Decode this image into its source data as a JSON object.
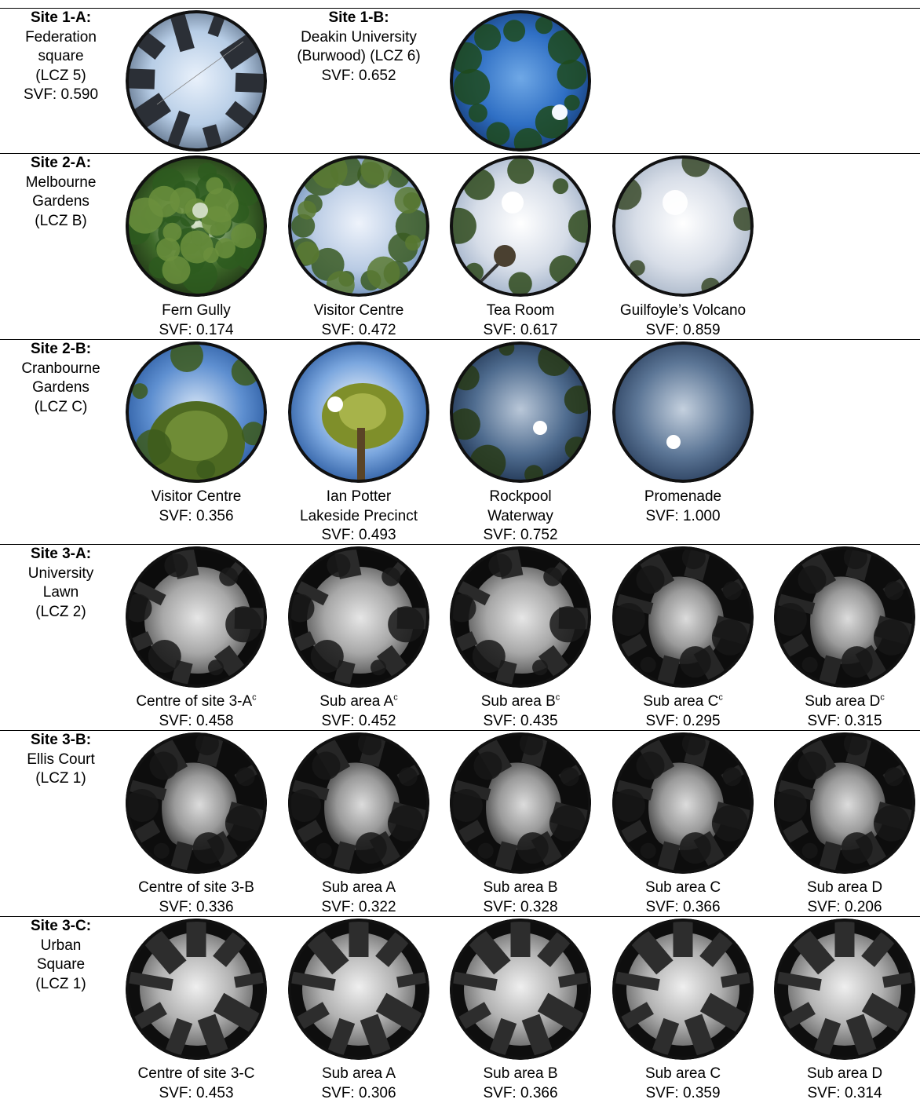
{
  "rows": [
    {
      "site": [
        "Site 1-A:",
        "Federation",
        "square",
        "(LCZ 5)",
        "SVF: 0.590"
      ],
      "inline": [
        "Site 1-B:",
        "Deakin University",
        "(Burwood) (LCZ 6)",
        "SVF: 0.652"
      ],
      "photos": [
        {
          "style": "dark-sky",
          "labels": []
        },
        {
          "style": "blue-trees",
          "labels": []
        }
      ]
    },
    {
      "site": [
        "Site 2-A:",
        "Melbourne",
        "Gardens",
        "(LCZ B)"
      ],
      "photos": [
        {
          "style": "forest",
          "labels": [
            "Fern Gully",
            "SVF: 0.174"
          ]
        },
        {
          "style": "cloud-trees",
          "labels": [
            "Visitor Centre",
            "SVF: 0.472"
          ]
        },
        {
          "style": "cloud-lamp",
          "labels": [
            "Tea Room",
            "SVF: 0.617"
          ]
        },
        {
          "style": "cloud-open",
          "labels": [
            "Guilfoyle’s Volcano",
            "SVF: 0.859"
          ]
        }
      ]
    },
    {
      "site": [
        "Site 2-B:",
        "Cranbourne",
        "Gardens",
        "(LCZ C)"
      ],
      "photos": [
        {
          "style": "blue-tree",
          "labels": [
            "Visitor Centre",
            "SVF: 0.356"
          ]
        },
        {
          "style": "blue-pine",
          "labels": [
            "Ian Potter",
            "Lakeside Precinct",
            "SVF: 0.493"
          ]
        },
        {
          "style": "dusk-sun",
          "labels": [
            "Rockpool",
            "Waterway",
            "SVF: 0.752"
          ]
        },
        {
          "style": "dusk-open",
          "labels": [
            "Promenade",
            "SVF: 1.000"
          ]
        }
      ]
    },
    {
      "site": [
        "Site 3-A:",
        "University",
        "Lawn",
        "(LCZ 2)"
      ],
      "photos": [
        {
          "style": "mono-lawn",
          "labels": [
            "Centre of site 3-A",
            "SVF: 0.458"
          ],
          "sup": "c"
        },
        {
          "style": "mono-lawn",
          "labels": [
            "Sub area A",
            "SVF: 0.452"
          ],
          "sup": "c"
        },
        {
          "style": "mono-lawn",
          "labels": [
            "Sub area B",
            "SVF: 0.435"
          ],
          "sup": "c"
        },
        {
          "style": "mono-court",
          "labels": [
            "Sub area C",
            "SVF: 0.295"
          ],
          "sup": "c"
        },
        {
          "style": "mono-court",
          "labels": [
            "Sub area D",
            "SVF: 0.315"
          ],
          "sup": "c"
        }
      ]
    },
    {
      "site": [
        "Site 3-B:",
        "Ellis Court",
        "(LCZ 1)"
      ],
      "photos": [
        {
          "style": "mono-court",
          "labels": [
            "Centre of site 3-B",
            "SVF: 0.336"
          ]
        },
        {
          "style": "mono-court",
          "labels": [
            "Sub area A",
            "SVF: 0.322"
          ]
        },
        {
          "style": "mono-court",
          "labels": [
            "Sub area B",
            "SVF: 0.328"
          ]
        },
        {
          "style": "mono-court",
          "labels": [
            "Sub area C",
            "SVF: 0.366"
          ]
        },
        {
          "style": "mono-court",
          "labels": [
            "Sub area D",
            "SVF: 0.206"
          ]
        }
      ]
    },
    {
      "site": [
        "Site 3-C:",
        "Urban",
        "Square",
        "(LCZ 1)"
      ],
      "photos": [
        {
          "style": "mono-towers",
          "labels": [
            "Centre of site 3-C",
            "SVF: 0.453"
          ]
        },
        {
          "style": "mono-towers",
          "labels": [
            "Sub area A",
            "SVF: 0.306"
          ]
        },
        {
          "style": "mono-towers",
          "labels": [
            "Sub area B",
            "SVF: 0.366"
          ]
        },
        {
          "style": "mono-towers",
          "labels": [
            "Sub area C",
            "SVF: 0.359"
          ]
        },
        {
          "style": "mono-towers",
          "labels": [
            "Sub area D",
            "SVF: 0.314"
          ]
        }
      ]
    }
  ]
}
